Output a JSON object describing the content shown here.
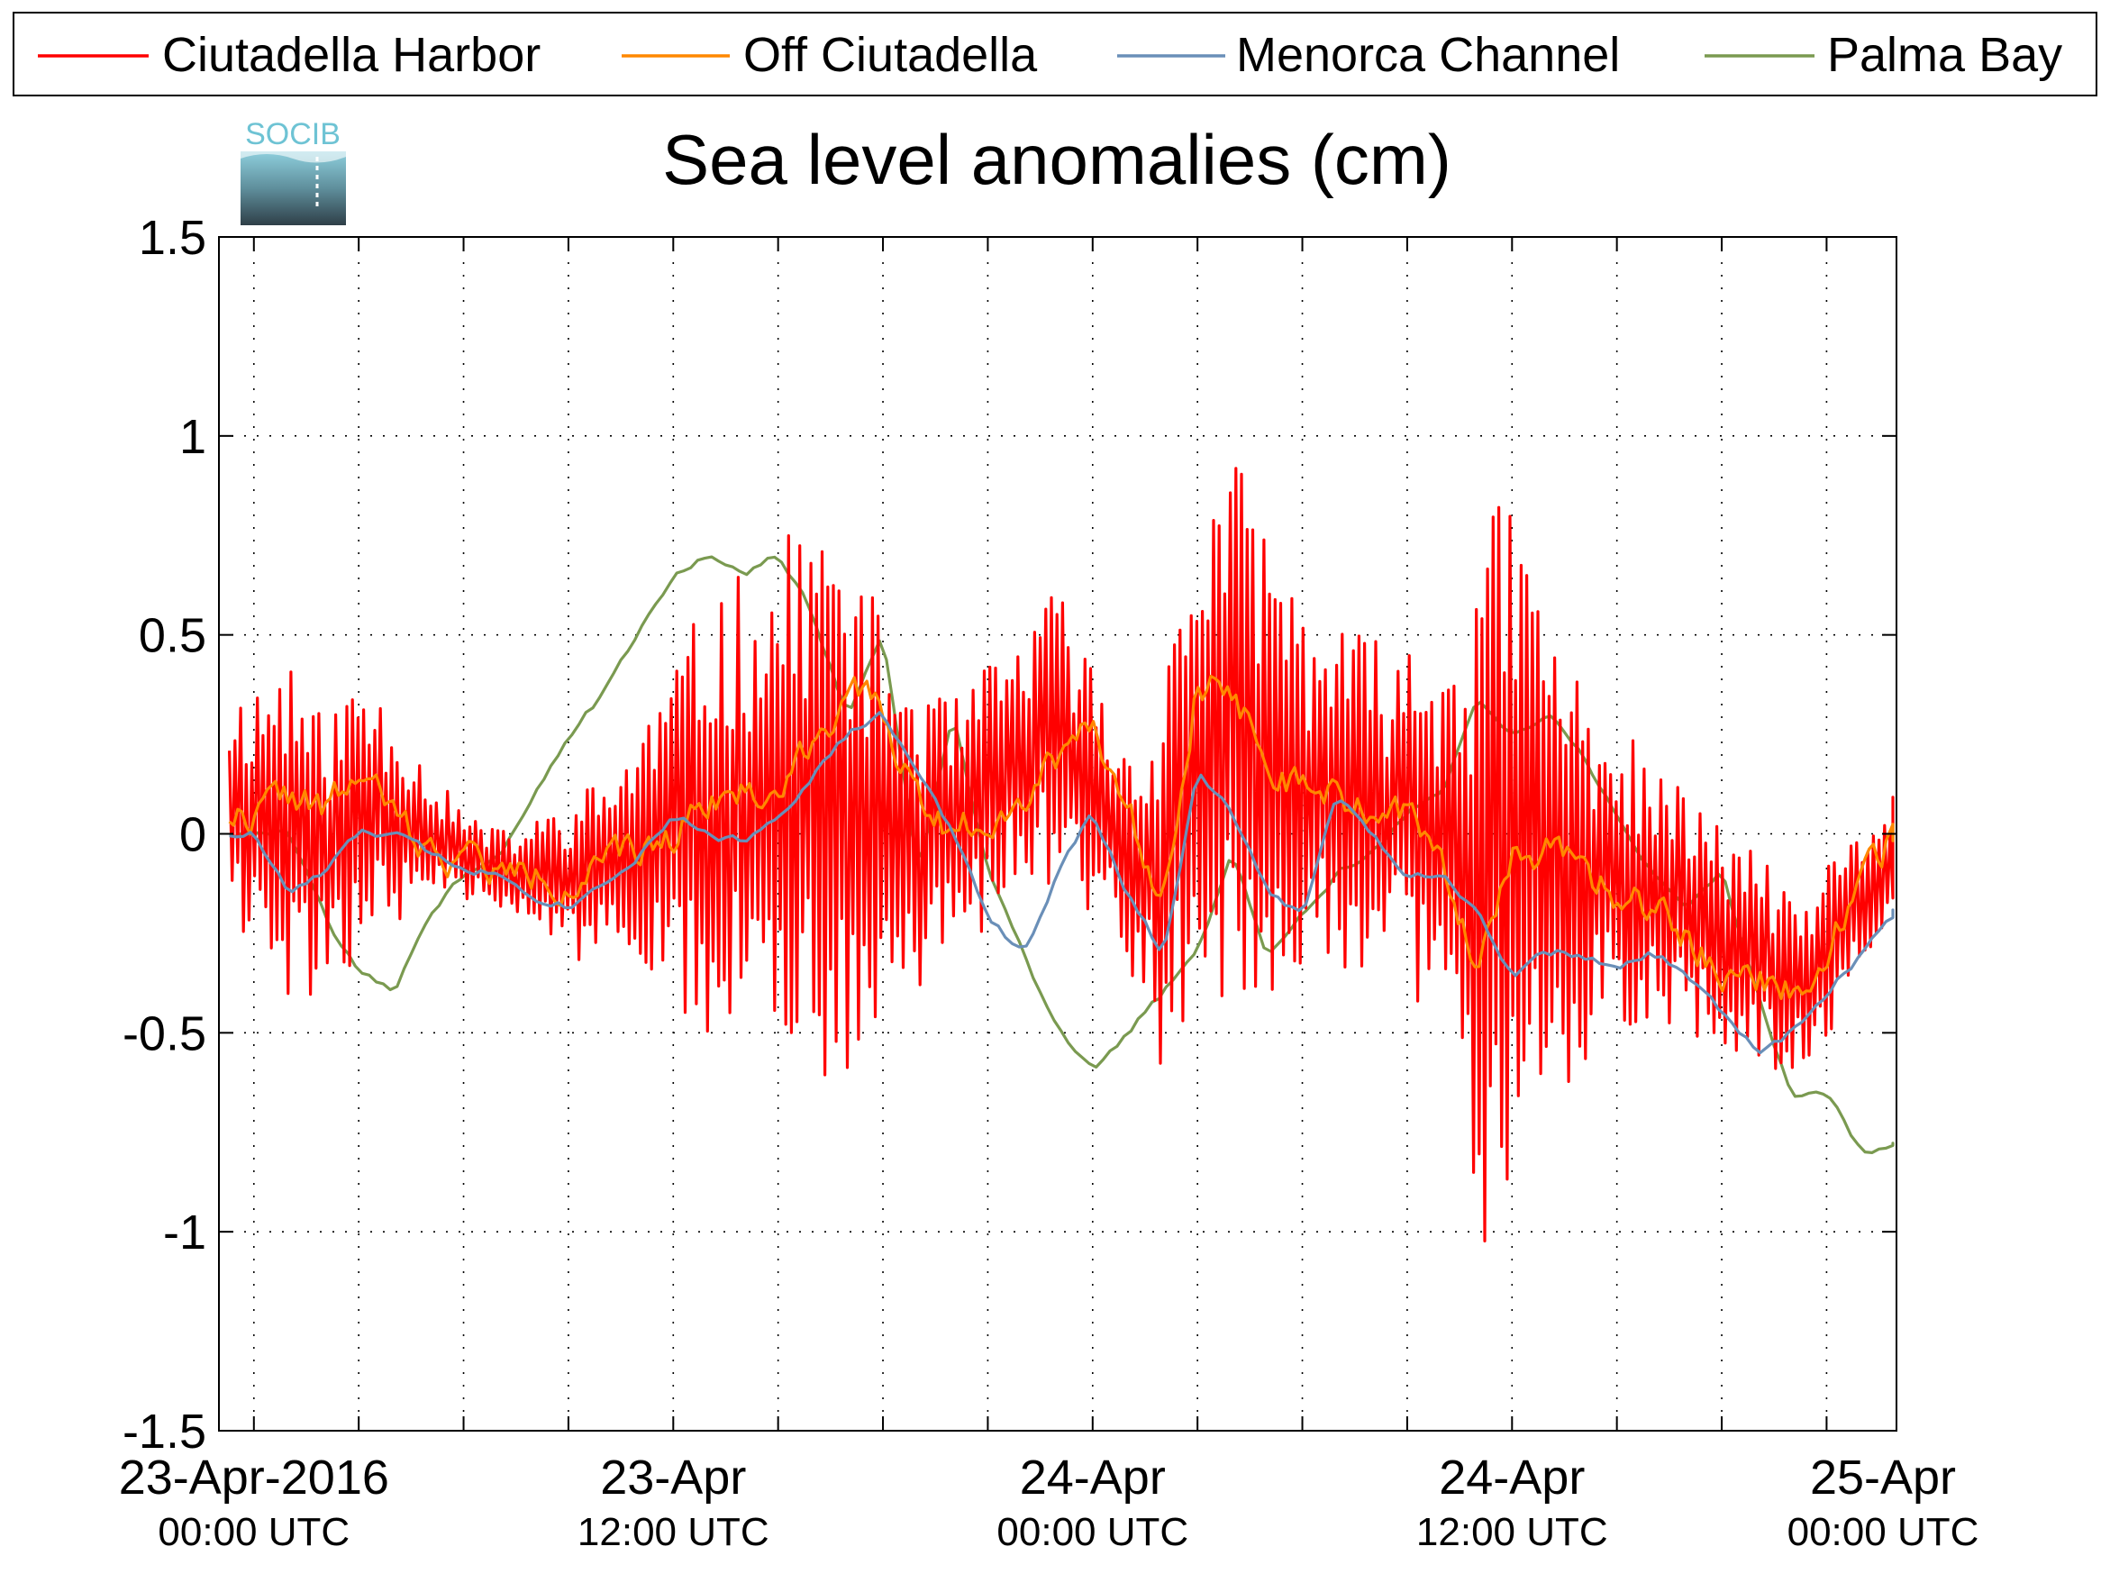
{
  "logo_text": "SOCIB",
  "chart_data": {
    "type": "line",
    "title": "Sea level anomalies (cm)",
    "xlabel": "",
    "ylabel": "",
    "ylim": [
      -1.5,
      1.5
    ],
    "yticks": [
      -1.5,
      -1,
      -0.5,
      0,
      0.5,
      1,
      1.5
    ],
    "ytick_labels": [
      "-1.5",
      "-1",
      "-0.5",
      "0",
      "0.5",
      "1",
      "1.5"
    ],
    "x_unit": "hours since 23-Apr-2016 00:00 UTC",
    "xlim": [
      -1,
      47
    ],
    "xticks": [
      0,
      3,
      6,
      9,
      12,
      15,
      18,
      21,
      24,
      27,
      30,
      33,
      36,
      39,
      42,
      45
    ],
    "xtick_labels": [
      {
        "x": 0,
        "date": "23-Apr-2016",
        "time": "00:00 UTC"
      },
      {
        "x": 12,
        "date": "23-Apr",
        "time": "12:00 UTC"
      },
      {
        "x": 24,
        "date": "24-Apr",
        "time": "00:00 UTC"
      },
      {
        "x": 36,
        "date": "24-Apr",
        "time": "12:00 UTC"
      },
      {
        "x": 48,
        "date": "25-Apr",
        "time": "00:00 UTC"
      }
    ],
    "grid": true,
    "legend_position": "top",
    "series": [
      {
        "name": "Ciutadella Harbor",
        "color": "#ff0000",
        "amplitude": [
          0.3,
          0.45,
          0.3,
          0.35,
          0.25,
          0.15,
          0.1,
          0.1,
          0.12,
          0.2,
          0.2,
          0.3,
          0.4,
          0.5,
          0.55,
          0.6,
          0.7,
          0.6,
          0.45,
          0.35,
          0.3,
          0.3,
          0.28,
          0.35,
          0.3,
          0.25,
          0.45,
          0.6,
          0.65,
          0.55,
          0.45,
          0.4,
          0.4,
          0.4,
          0.45,
          0.9,
          0.8,
          0.6,
          0.45,
          0.35,
          0.3,
          0.28,
          0.25,
          0.25,
          0.2,
          0.2,
          0.15,
          0.15
        ],
        "values": [
          0.05,
          0.0,
          -0.05,
          0.05,
          0.05,
          0.0,
          -0.05,
          -0.1,
          -0.1,
          -0.12,
          -0.08,
          -0.05,
          0.0,
          0.05,
          0.05,
          0.05,
          0.1,
          0.05,
          0.05,
          0.0,
          0.0,
          0.1,
          0.2,
          0.25,
          0.1,
          -0.05,
          -0.1,
          0.2,
          0.25,
          0.2,
          0.1,
          0.1,
          0.05,
          0.05,
          0.0,
          -0.2,
          0.0,
          -0.05,
          -0.1,
          -0.1,
          -0.15,
          -0.2,
          -0.25,
          -0.3,
          -0.4,
          -0.3,
          -0.15,
          -0.05
        ]
      },
      {
        "name": "Off Ciutadella",
        "color": "#ff8800",
        "values": [
          0.05,
          0.1,
          0.05,
          0.15,
          0.05,
          -0.05,
          -0.05,
          -0.1,
          -0.1,
          -0.12,
          -0.08,
          -0.05,
          0.0,
          0.1,
          0.1,
          0.1,
          0.25,
          0.35,
          0.3,
          0.1,
          0.0,
          0.05,
          0.1,
          0.2,
          0.3,
          0.05,
          -0.15,
          0.4,
          0.35,
          0.2,
          0.1,
          0.1,
          0.05,
          0.05,
          -0.1,
          -0.3,
          -0.05,
          -0.05,
          -0.1,
          -0.15,
          -0.2,
          -0.25,
          -0.35,
          -0.35,
          -0.4,
          -0.3,
          -0.1,
          0.0
        ]
      },
      {
        "name": "Menorca Channel",
        "color": "#6a8fb8",
        "values": [
          0.0,
          -0.15,
          -0.1,
          0.0,
          0.0,
          -0.05,
          -0.08,
          -0.1,
          -0.15,
          -0.18,
          -0.12,
          -0.05,
          0.05,
          0.0,
          -0.02,
          0.05,
          0.15,
          0.25,
          0.3,
          0.15,
          0.0,
          -0.2,
          -0.3,
          -0.1,
          0.05,
          -0.15,
          -0.3,
          0.15,
          0.05,
          -0.15,
          -0.2,
          0.1,
          0.0,
          -0.1,
          -0.1,
          -0.2,
          -0.35,
          -0.3,
          -0.3,
          -0.35,
          -0.3,
          -0.35,
          -0.45,
          -0.55,
          -0.5,
          -0.4,
          -0.3,
          -0.2
        ]
      },
      {
        "name": "Palma Bay",
        "color": "#7a9a50",
        "values": [
          0.0,
          0.0,
          -0.2,
          -0.35,
          -0.4,
          -0.2,
          -0.1,
          -0.05,
          0.1,
          0.25,
          0.35,
          0.5,
          0.65,
          0.7,
          0.65,
          0.7,
          0.55,
          0.3,
          0.5,
          -0.1,
          0.3,
          -0.1,
          -0.3,
          -0.5,
          -0.6,
          -0.5,
          -0.4,
          -0.3,
          -0.05,
          -0.3,
          -0.2,
          -0.1,
          -0.05,
          0.05,
          0.1,
          0.35,
          0.25,
          0.3,
          0.2,
          0.05,
          -0.1,
          -0.2,
          -0.1,
          -0.4,
          -0.65,
          -0.65,
          -0.8,
          -0.78
        ]
      }
    ]
  }
}
